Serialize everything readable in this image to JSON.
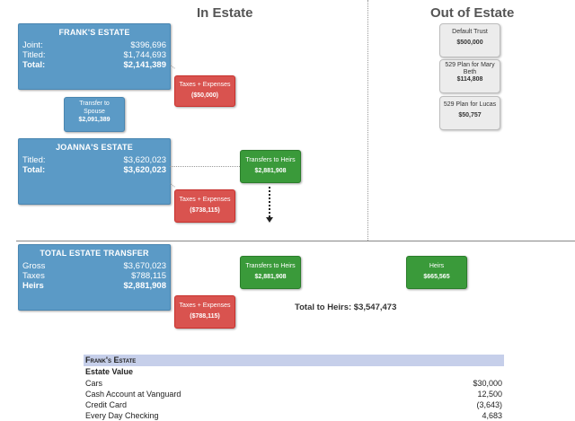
{
  "headers": {
    "in_estate": "In Estate",
    "out_estate": "Out of Estate"
  },
  "frank": {
    "title": "FRANK'S ESTATE",
    "rows": [
      {
        "label": "Joint:",
        "value": "$396,696"
      },
      {
        "label": "Titled:",
        "value": "$1,744,693"
      },
      {
        "label": "Total:",
        "value": "$2,141,389"
      }
    ],
    "taxes_label": "Taxes + Expenses",
    "taxes_value": "($50,000)",
    "transfer_label": "Transfer to Spouse",
    "transfer_value": "$2,091,389"
  },
  "joanna": {
    "title": "JOANNA'S ESTATE",
    "rows": [
      {
        "label": "Titled:",
        "value": "$3,620,023"
      },
      {
        "label": "Total:",
        "value": "$3,620,023"
      }
    ],
    "heirs_label": "Transfers to Heirs",
    "heirs_value": "$2,881,908",
    "taxes_label": "Taxes + Expenses",
    "taxes_value": "($738,115)"
  },
  "total": {
    "title": "TOTAL ESTATE TRANSFER",
    "rows": [
      {
        "label": "Gross",
        "value": "$3,670,023"
      },
      {
        "label": "Taxes",
        "value": "$788,115"
      },
      {
        "label": "Heirs",
        "value": "$2,881,908"
      }
    ],
    "heirs_label": "Transfers to Heirs",
    "heirs_value": "$2,881,908",
    "taxes_label": "Taxes + Expenses",
    "taxes_value": "($788,115)",
    "out_heirs_label": "Heirs",
    "out_heirs_value": "$665,565",
    "total_to_heirs": "Total to Heirs: $3,547,473"
  },
  "out_estate": [
    {
      "label": "Default Trust",
      "value": "$500,000"
    },
    {
      "label": "529 Plan for Mary Beth",
      "value": "$114,808"
    },
    {
      "label": "529 Plan for Lucas",
      "value": "$50,757"
    }
  ],
  "table": {
    "band": "Frank's Estate",
    "sub": "Estate Value",
    "rows": [
      {
        "label": "Cars",
        "value": "$30,000"
      },
      {
        "label": "Cash Account at Vanguard",
        "value": "12,500"
      },
      {
        "label": "Credit Card",
        "value": "(3,643)"
      },
      {
        "label": "Every Day Checking",
        "value": "4,683"
      }
    ]
  }
}
